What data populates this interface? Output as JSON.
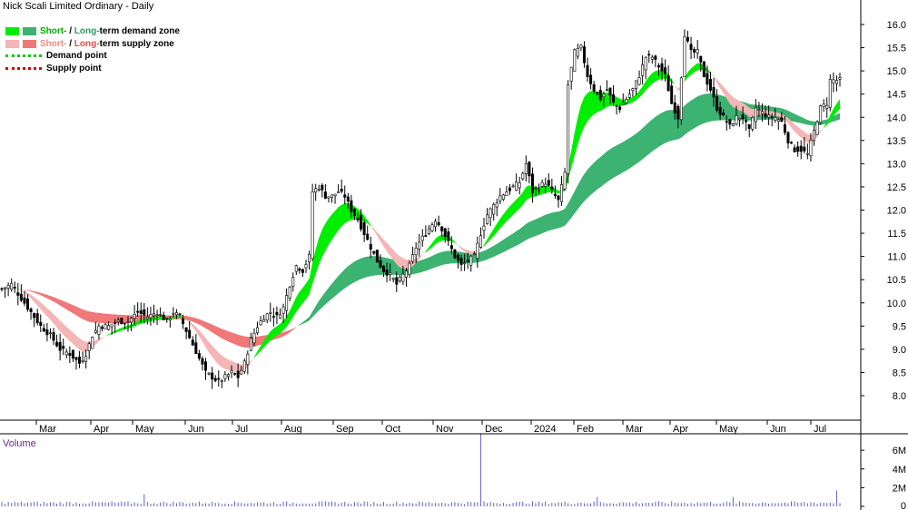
{
  "title": "Nick Scali Limited Ordinary - Daily",
  "legend": {
    "demand_short_label": "Short-",
    "demand_sep": " / ",
    "demand_long_label": "Long-",
    "demand_suffix": "term demand zone",
    "supply_short_label": "Short-",
    "supply_sep": " / ",
    "supply_long_label": "Long-",
    "supply_suffix": "term supply zone",
    "demand_point": "Demand point",
    "supply_point": "Supply point"
  },
  "volume_label": "Volume",
  "colors": {
    "short_demand": "#00ee00",
    "long_demand": "#3cb371",
    "short_supply": "#f4b6b6",
    "long_supply": "#f07878",
    "overlap": "#f07030",
    "demand_point": "#00c800",
    "supply_point": "#e00000",
    "candle": "#000000",
    "volume": "#6060d0",
    "axis_text": "#000000",
    "volume_title": "#6a2a8a"
  },
  "chart_data": {
    "type": "candlestick",
    "price_axis": {
      "min": 8.0,
      "max": 16.0,
      "ticks": [
        "8.0",
        "8.5",
        "9.0",
        "9.5",
        "10.0",
        "10.5",
        "11.0",
        "11.5",
        "12.0",
        "12.5",
        "13.0",
        "13.5",
        "14.0",
        "14.5",
        "15.0",
        "15.5",
        "16.0"
      ]
    },
    "volume_axis": {
      "ticks": [
        "0",
        "2M",
        "4M",
        "6M"
      ],
      "values": [
        0,
        2000000,
        4000000,
        6000000
      ]
    },
    "x_ticks": [
      "Mar",
      "Apr",
      "May",
      "Jun",
      "Jul",
      "Aug",
      "Sep",
      "Oct",
      "Nov",
      "Dec",
      "2024",
      "Feb",
      "Mar",
      "Apr",
      "May",
      "Jun",
      "Jul"
    ],
    "close_path": [
      [
        0,
        10.3
      ],
      [
        3,
        10.4
      ],
      [
        6,
        10.1
      ],
      [
        9,
        9.8
      ],
      [
        12,
        9.5
      ],
      [
        15,
        9.3
      ],
      [
        18,
        9.0
      ],
      [
        21,
        8.9
      ],
      [
        24,
        8.7
      ],
      [
        26,
        8.9
      ],
      [
        28,
        9.3
      ],
      [
        30,
        9.5
      ],
      [
        33,
        9.5
      ],
      [
        36,
        9.6
      ],
      [
        39,
        9.6
      ],
      [
        42,
        9.8
      ],
      [
        45,
        9.7
      ],
      [
        48,
        9.8
      ],
      [
        51,
        9.6
      ],
      [
        53,
        9.8
      ],
      [
        55,
        9.7
      ],
      [
        57,
        9.4
      ],
      [
        59,
        9.1
      ],
      [
        61,
        8.8
      ],
      [
        63,
        8.5
      ],
      [
        65,
        8.4
      ],
      [
        67,
        8.3
      ],
      [
        69,
        8.4
      ],
      [
        71,
        8.5
      ],
      [
        73,
        8.4
      ],
      [
        75,
        8.7
      ],
      [
        77,
        9.2
      ],
      [
        79,
        9.5
      ],
      [
        81,
        9.7
      ],
      [
        83,
        9.8
      ],
      [
        85,
        9.7
      ],
      [
        87,
        9.9
      ],
      [
        89,
        10.4
      ],
      [
        91,
        10.8
      ],
      [
        93,
        10.7
      ],
      [
        95,
        11.0
      ],
      [
        96,
        12.4
      ],
      [
        98,
        12.5
      ],
      [
        100,
        12.3
      ],
      [
        102,
        12.3
      ],
      [
        104,
        12.4
      ],
      [
        106,
        12.3
      ],
      [
        108,
        12.0
      ],
      [
        110,
        11.8
      ],
      [
        112,
        11.5
      ],
      [
        114,
        11.2
      ],
      [
        116,
        10.9
      ],
      [
        118,
        10.7
      ],
      [
        120,
        10.6
      ],
      [
        122,
        10.4
      ],
      [
        124,
        10.6
      ],
      [
        126,
        10.8
      ],
      [
        128,
        11.2
      ],
      [
        130,
        11.4
      ],
      [
        132,
        11.6
      ],
      [
        134,
        11.8
      ],
      [
        136,
        11.6
      ],
      [
        138,
        11.3
      ],
      [
        140,
        11.0
      ],
      [
        142,
        10.8
      ],
      [
        144,
        10.9
      ],
      [
        146,
        11.0
      ],
      [
        148,
        11.5
      ],
      [
        150,
        11.9
      ],
      [
        152,
        12.1
      ],
      [
        154,
        12.3
      ],
      [
        156,
        12.4
      ],
      [
        158,
        12.5
      ],
      [
        160,
        12.6
      ],
      [
        162,
        13.0
      ],
      [
        164,
        12.4
      ],
      [
        166,
        12.5
      ],
      [
        168,
        12.6
      ],
      [
        170,
        12.4
      ],
      [
        172,
        12.2
      ],
      [
        174,
        12.8
      ],
      [
        175,
        14.7
      ],
      [
        177,
        15.4
      ],
      [
        179,
        15.5
      ],
      [
        181,
        14.9
      ],
      [
        183,
        14.6
      ],
      [
        185,
        14.4
      ],
      [
        187,
        14.6
      ],
      [
        189,
        14.3
      ],
      [
        191,
        14.2
      ],
      [
        193,
        14.4
      ],
      [
        195,
        14.6
      ],
      [
        197,
        14.9
      ],
      [
        199,
        15.3
      ],
      [
        201,
        15.3
      ],
      [
        203,
        15.1
      ],
      [
        205,
        14.9
      ],
      [
        207,
        14.3
      ],
      [
        209,
        14.0
      ],
      [
        211,
        15.8
      ],
      [
        213,
        15.4
      ],
      [
        215,
        15.4
      ],
      [
        217,
        14.9
      ],
      [
        219,
        14.6
      ],
      [
        221,
        14.2
      ],
      [
        223,
        14.0
      ],
      [
        225,
        13.8
      ],
      [
        227,
        14.0
      ],
      [
        229,
        14.0
      ],
      [
        231,
        13.7
      ],
      [
        233,
        14.2
      ],
      [
        235,
        14.1
      ],
      [
        237,
        14.0
      ],
      [
        239,
        14.0
      ],
      [
        241,
        13.9
      ],
      [
        243,
        13.5
      ],
      [
        245,
        13.3
      ],
      [
        247,
        13.3
      ],
      [
        249,
        13.2
      ],
      [
        251,
        13.7
      ],
      [
        253,
        14.2
      ],
      [
        255,
        14.3
      ],
      [
        256,
        14.8
      ]
    ]
  }
}
